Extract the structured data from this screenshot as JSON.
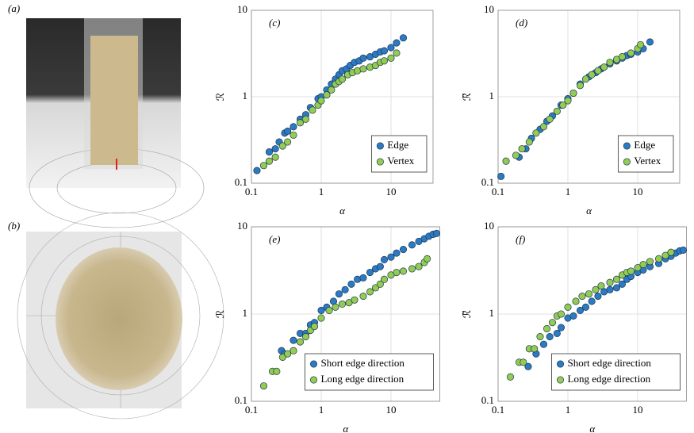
{
  "panel_labels": {
    "a": "(a)",
    "b": "(b)"
  },
  "chart_data": [
    {
      "type": "scatter",
      "panel_label": "(c)",
      "xlabel": "α",
      "ylabel": "ℛ",
      "log_x": true,
      "log_y": true,
      "grid": true,
      "legend": "lower right",
      "xlim": [
        0.1,
        40
      ],
      "ylim": [
        0.1,
        10
      ],
      "xticks": [
        0.1,
        1,
        10
      ],
      "yticks": [
        0.1,
        1,
        10
      ],
      "series": [
        {
          "name": "Edge",
          "color": "#2a7bc4",
          "x": [
            0.12,
            0.18,
            0.22,
            0.25,
            0.3,
            0.33,
            0.4,
            0.5,
            0.6,
            0.7,
            0.9,
            1.0,
            1.2,
            1.4,
            1.6,
            1.8,
            2.0,
            2.3,
            2.6,
            3,
            3.5,
            4,
            5,
            6,
            7,
            8,
            10,
            12,
            15
          ],
          "values": [
            0.14,
            0.23,
            0.25,
            0.3,
            0.38,
            0.4,
            0.45,
            0.55,
            0.62,
            0.75,
            0.95,
            1.0,
            1.2,
            1.4,
            1.6,
            1.8,
            2.0,
            2.1,
            2.3,
            2.5,
            2.6,
            2.8,
            2.9,
            3.1,
            3.3,
            3.4,
            3.7,
            4.2,
            4.8
          ]
        },
        {
          "name": "Vertex",
          "color": "#92cc52",
          "x": [
            0.15,
            0.18,
            0.22,
            0.28,
            0.33,
            0.4,
            0.5,
            0.6,
            0.75,
            0.9,
            1.0,
            1.2,
            1.4,
            1.6,
            1.8,
            2.0,
            2.4,
            2.8,
            3.3,
            4,
            5,
            6,
            7,
            8,
            10,
            12
          ],
          "values": [
            0.16,
            0.18,
            0.2,
            0.27,
            0.3,
            0.36,
            0.5,
            0.55,
            0.7,
            0.8,
            0.9,
            1.05,
            1.2,
            1.4,
            1.5,
            1.6,
            1.8,
            1.9,
            2.0,
            2.1,
            2.2,
            2.3,
            2.5,
            2.6,
            2.8,
            3.2
          ]
        }
      ]
    },
    {
      "type": "scatter",
      "panel_label": "(d)",
      "xlabel": "α",
      "ylabel": "ℛ̃",
      "log_x": true,
      "log_y": true,
      "grid": true,
      "legend": "lower right",
      "xlim": [
        0.1,
        40
      ],
      "ylim": [
        0.1,
        10
      ],
      "xticks": [
        0.1,
        1,
        10
      ],
      "yticks": [
        0.1,
        1,
        10
      ],
      "series": [
        {
          "name": "Edge",
          "color": "#2a7bc4",
          "x": [
            0.11,
            0.2,
            0.25,
            0.3,
            0.4,
            0.5,
            0.6,
            0.8,
            1.0,
            1.2,
            1.5,
            2,
            2.5,
            3,
            4,
            5,
            6,
            7,
            8,
            10,
            12,
            15
          ],
          "values": [
            0.12,
            0.2,
            0.25,
            0.33,
            0.42,
            0.52,
            0.6,
            0.8,
            0.95,
            1.1,
            1.4,
            1.7,
            1.9,
            2.1,
            2.4,
            2.6,
            2.8,
            3.0,
            3.1,
            3.3,
            3.6,
            4.3
          ]
        },
        {
          "name": "Vertex",
          "color": "#92cc52",
          "x": [
            0.13,
            0.18,
            0.22,
            0.28,
            0.35,
            0.45,
            0.55,
            0.7,
            0.85,
            1.0,
            1.2,
            1.5,
            1.8,
            2.2,
            2.7,
            3.3,
            4,
            5,
            6,
            8,
            10,
            11
          ],
          "values": [
            0.18,
            0.21,
            0.25,
            0.3,
            0.38,
            0.45,
            0.55,
            0.68,
            0.8,
            0.9,
            1.1,
            1.35,
            1.6,
            1.8,
            2.0,
            2.2,
            2.5,
            2.7,
            2.9,
            3.2,
            3.6,
            4.0
          ]
        }
      ]
    },
    {
      "type": "scatter",
      "panel_label": "(e)",
      "xlabel": "α",
      "ylabel": "ℛ",
      "log_x": true,
      "log_y": true,
      "grid": true,
      "legend": "lower right",
      "xlim": [
        0.1,
        50
      ],
      "ylim": [
        0.1,
        10
      ],
      "xticks": [
        0.1,
        1,
        10
      ],
      "yticks": [
        0.1,
        1,
        10
      ],
      "series": [
        {
          "name": "Short edge direction",
          "color": "#2a7bc4",
          "x": [
            0.27,
            0.3,
            0.4,
            0.5,
            0.6,
            0.7,
            0.8,
            1.0,
            1.2,
            1.5,
            1.8,
            2.2,
            2.7,
            3.3,
            4,
            5,
            6,
            7,
            8,
            10,
            12,
            15,
            20,
            25,
            30,
            35,
            40,
            45
          ],
          "values": [
            0.38,
            0.35,
            0.5,
            0.6,
            0.6,
            0.75,
            0.8,
            1.1,
            1.2,
            1.4,
            1.7,
            1.9,
            2.2,
            2.5,
            2.6,
            3.0,
            3.3,
            3.5,
            4.2,
            4.5,
            5.0,
            5.5,
            6.2,
            6.8,
            7.3,
            7.8,
            8.2,
            8.4
          ]
        },
        {
          "name": "Long edge direction",
          "color": "#92cc52",
          "x": [
            0.15,
            0.2,
            0.23,
            0.28,
            0.33,
            0.4,
            0.5,
            0.6,
            0.7,
            0.8,
            1.0,
            1.3,
            1.6,
            2,
            2.5,
            3,
            4,
            5,
            6,
            7,
            8,
            10,
            12,
            15,
            20,
            25,
            30,
            33
          ],
          "values": [
            0.15,
            0.22,
            0.22,
            0.32,
            0.35,
            0.38,
            0.48,
            0.55,
            0.65,
            0.72,
            0.9,
            1.1,
            1.2,
            1.3,
            1.35,
            1.45,
            1.6,
            1.8,
            2.0,
            2.2,
            2.5,
            2.8,
            3.0,
            3.1,
            3.3,
            3.5,
            3.9,
            4.3
          ]
        }
      ]
    },
    {
      "type": "scatter",
      "panel_label": "(f)",
      "xlabel": "α",
      "ylabel": "ℛ̃",
      "log_x": true,
      "log_y": true,
      "grid": true,
      "legend": "lower right",
      "xlim": [
        0.1,
        50
      ],
      "ylim": [
        0.1,
        10
      ],
      "xticks": [
        0.1,
        1,
        10
      ],
      "yticks": [
        0.1,
        1,
        10
      ],
      "series": [
        {
          "name": "Short edge direction",
          "color": "#2a7bc4",
          "x": [
            0.27,
            0.35,
            0.45,
            0.55,
            0.7,
            0.8,
            1.0,
            1.2,
            1.5,
            1.8,
            2.2,
            2.7,
            3.3,
            4,
            5,
            6,
            7,
            8,
            10,
            12,
            15,
            20,
            25,
            30,
            35,
            40,
            45
          ],
          "values": [
            0.25,
            0.35,
            0.45,
            0.55,
            0.6,
            0.7,
            0.9,
            0.95,
            1.1,
            1.2,
            1.4,
            1.6,
            1.8,
            1.9,
            2.0,
            2.2,
            2.5,
            2.7,
            3.0,
            3.2,
            3.5,
            3.8,
            4.3,
            4.6,
            5.0,
            5.3,
            5.4
          ]
        },
        {
          "name": "Long edge direction",
          "color": "#92cc52",
          "x": [
            0.15,
            0.2,
            0.23,
            0.28,
            0.33,
            0.4,
            0.5,
            0.6,
            0.7,
            0.8,
            1.0,
            1.3,
            1.6,
            2,
            2.5,
            3,
            4,
            5,
            6,
            7,
            8,
            10,
            12,
            15,
            20,
            25,
            30
          ],
          "values": [
            0.19,
            0.28,
            0.28,
            0.4,
            0.4,
            0.55,
            0.68,
            0.8,
            0.95,
            1.0,
            1.2,
            1.4,
            1.6,
            1.7,
            1.9,
            2.1,
            2.3,
            2.5,
            2.8,
            3.0,
            3.1,
            3.4,
            3.7,
            4.0,
            4.3,
            4.7,
            5.1
          ]
        }
      ]
    }
  ]
}
